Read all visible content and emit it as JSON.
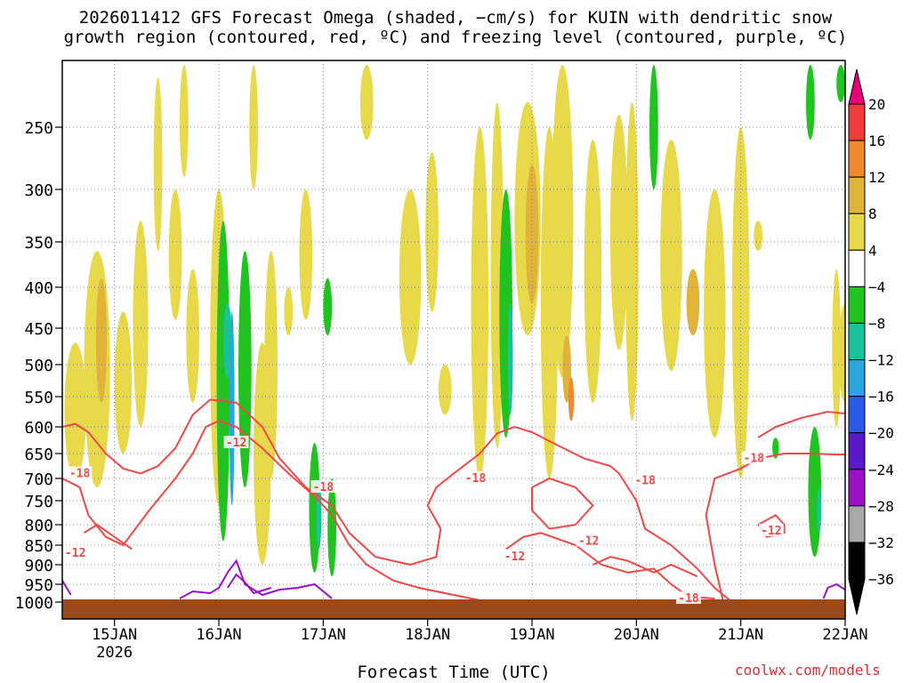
{
  "chart_data": {
    "type": "heatmap",
    "title_line1": "2026011412 GFS Forecast Omega (shaded, −cm/s) for KUIN with dendritic snow",
    "title_line2": "growth region (contoured, red, ºC) and freezing level (contoured, purple, ºC)",
    "xlabel": "Forecast Time (UTC)",
    "credit": "coolwx.com/models",
    "x_ticks": [
      {
        "label": "15JAN",
        "sub": "2026",
        "hours_from_start": 12
      },
      {
        "label": "16JAN",
        "sub": "",
        "hours_from_start": 36
      },
      {
        "label": "17JAN",
        "sub": "",
        "hours_from_start": 60
      },
      {
        "label": "18JAN",
        "sub": "",
        "hours_from_start": 84
      },
      {
        "label": "19JAN",
        "sub": "",
        "hours_from_start": 108
      },
      {
        "label": "20JAN",
        "sub": "",
        "hours_from_start": 132
      },
      {
        "label": "21JAN",
        "sub": "",
        "hours_from_start": 156
      },
      {
        "label": "22JAN",
        "sub": "",
        "hours_from_start": 180
      }
    ],
    "x_range_hours": [
      0,
      180
    ],
    "y_axis": "pressure (hPa)",
    "y_ticks": [
      250,
      300,
      350,
      400,
      450,
      500,
      550,
      600,
      650,
      700,
      750,
      800,
      850,
      900,
      950,
      1000
    ],
    "y_range": [
      200,
      1020
    ],
    "colorbar_labels": [
      "20",
      "16",
      "12",
      "8",
      "4",
      "−4",
      "−8",
      "−12",
      "−16",
      "−20",
      "−24",
      "−28",
      "−32",
      "−36"
    ],
    "colorbar_colors": [
      "#e6007a",
      "#f03c3c",
      "#ee8a2e",
      "#e2b339",
      "#e8d94a",
      "#ffffff",
      "#1fc41f",
      "#19c39a",
      "#2aa5df",
      "#2a5ae6",
      "#5a18c8",
      "#9a12c4",
      "#a8a8a8",
      "#000000"
    ],
    "contour_labels": [
      {
        "text": "-18",
        "hour": 4,
        "p": 690
      },
      {
        "text": "-12",
        "hour": 3,
        "p": 870
      },
      {
        "text": "-12",
        "hour": 40,
        "p": 630
      },
      {
        "text": "-18",
        "hour": 60,
        "p": 720
      },
      {
        "text": "-18",
        "hour": 95,
        "p": 700
      },
      {
        "text": "-12",
        "hour": 104,
        "p": 880
      },
      {
        "text": "-12",
        "hour": 121,
        "p": 840
      },
      {
        "text": "-18",
        "hour": 134,
        "p": 705
      },
      {
        "text": "-18",
        "hour": 159,
        "p": 660
      },
      {
        "text": "-12",
        "hour": 163,
        "p": 815
      },
      {
        "text": "-18",
        "hour": 144,
        "p": 990
      }
    ],
    "ground_color": "#9b4a1e",
    "dsgz_contour_color": "#f04848",
    "freezing_contour_color": "#9a10c8"
  }
}
